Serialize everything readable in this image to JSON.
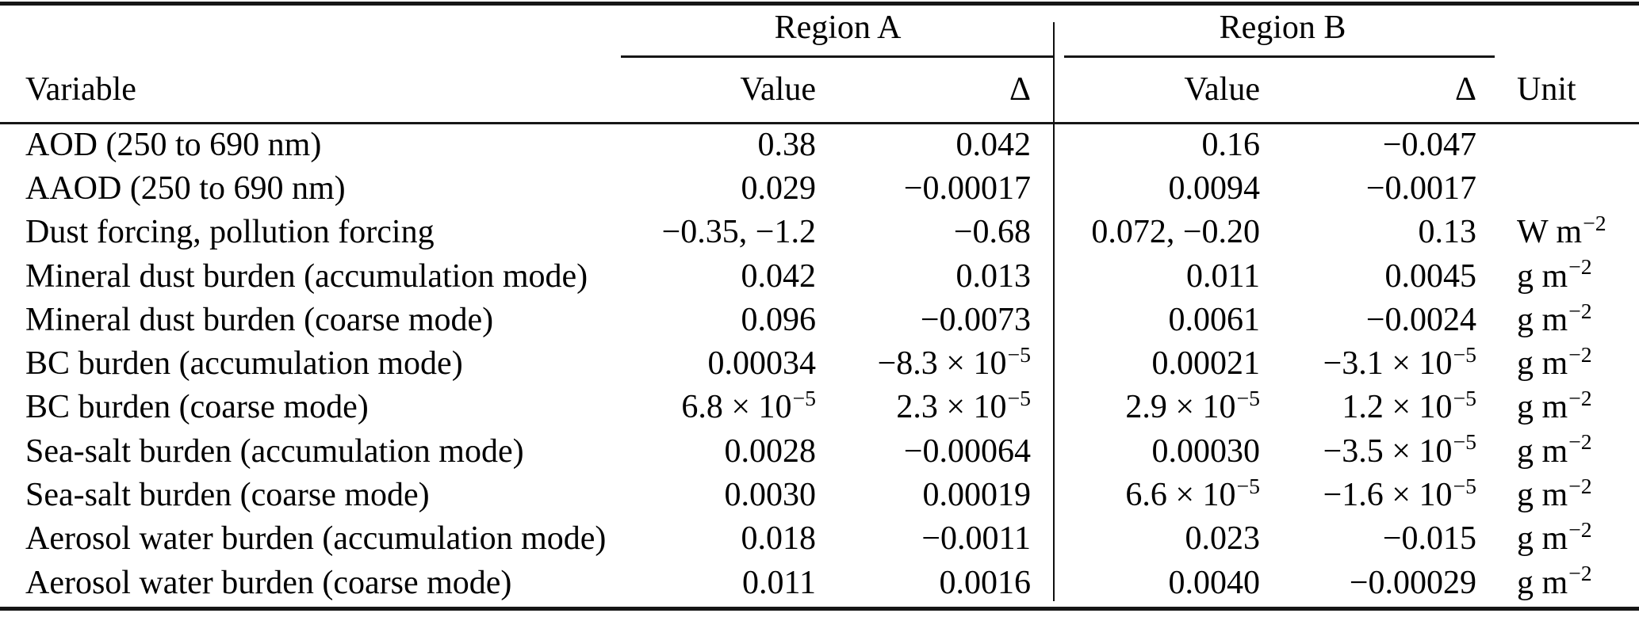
{
  "table": {
    "column_groups": [
      {
        "label": "Region A"
      },
      {
        "label": "Region B"
      }
    ],
    "headers": {
      "variable": "Variable",
      "value_a": "Value",
      "delta_a": "Δ",
      "value_b": "Value",
      "delta_b": "Δ",
      "unit": "Unit"
    },
    "rows": [
      {
        "variable": "AOD (250 to 690 nm)",
        "value_a": "0.38",
        "delta_a": "0.042",
        "value_b": "0.16",
        "delta_b": "−0.047",
        "unit": ""
      },
      {
        "variable": "AAOD (250 to 690 nm)",
        "value_a": "0.029",
        "delta_a": "−0.00017",
        "value_b": "0.0094",
        "delta_b": "−0.0017",
        "unit": ""
      },
      {
        "variable": "Dust forcing, pollution forcing",
        "value_a": "−0.35, −1.2",
        "delta_a": "−0.68",
        "value_b": "0.072, −0.20",
        "delta_b": "0.13",
        "unit": "W m^{−2}"
      },
      {
        "variable": "Mineral dust burden (accumulation mode)",
        "value_a": "0.042",
        "delta_a": "0.013",
        "value_b": "0.011",
        "delta_b": "0.0045",
        "unit": "g m^{−2}"
      },
      {
        "variable": "Mineral dust burden (coarse mode)",
        "value_a": "0.096",
        "delta_a": "−0.0073",
        "value_b": "0.0061",
        "delta_b": "−0.0024",
        "unit": "g m^{−2}"
      },
      {
        "variable": "BC burden (accumulation mode)",
        "value_a": "0.00034",
        "delta_a": "−8.3 × 10^{−5}",
        "value_b": "0.00021",
        "delta_b": "−3.1 × 10^{−5}",
        "unit": "g m^{−2}"
      },
      {
        "variable": "BC burden (coarse mode)",
        "value_a": "6.8 × 10^{−5}",
        "delta_a": "2.3 × 10^{−5}",
        "value_b": "2.9 × 10^{−5}",
        "delta_b": "1.2 × 10^{−5}",
        "unit": "g m^{−2}"
      },
      {
        "variable": "Sea-salt burden (accumulation mode)",
        "value_a": "0.0028",
        "delta_a": "−0.00064",
        "value_b": "0.00030",
        "delta_b": "−3.5 × 10^{−5}",
        "unit": "g m^{−2}"
      },
      {
        "variable": "Sea-salt burden (coarse mode)",
        "value_a": "0.0030",
        "delta_a": "0.00019",
        "value_b": "6.6 × 10^{−5}",
        "delta_b": "−1.6 × 10^{−5}",
        "unit": "g m^{−2}"
      },
      {
        "variable": "Aerosol water burden (accumulation mode)",
        "value_a": "0.018",
        "delta_a": "−0.0011",
        "value_b": "0.023",
        "delta_b": "−0.015",
        "unit": "g m^{−2}"
      },
      {
        "variable": "Aerosol water burden (coarse mode)",
        "value_a": "0.011",
        "delta_a": "0.0016",
        "value_b": "0.0040",
        "delta_b": "−0.00029",
        "unit": "g m^{−2}"
      }
    ]
  }
}
